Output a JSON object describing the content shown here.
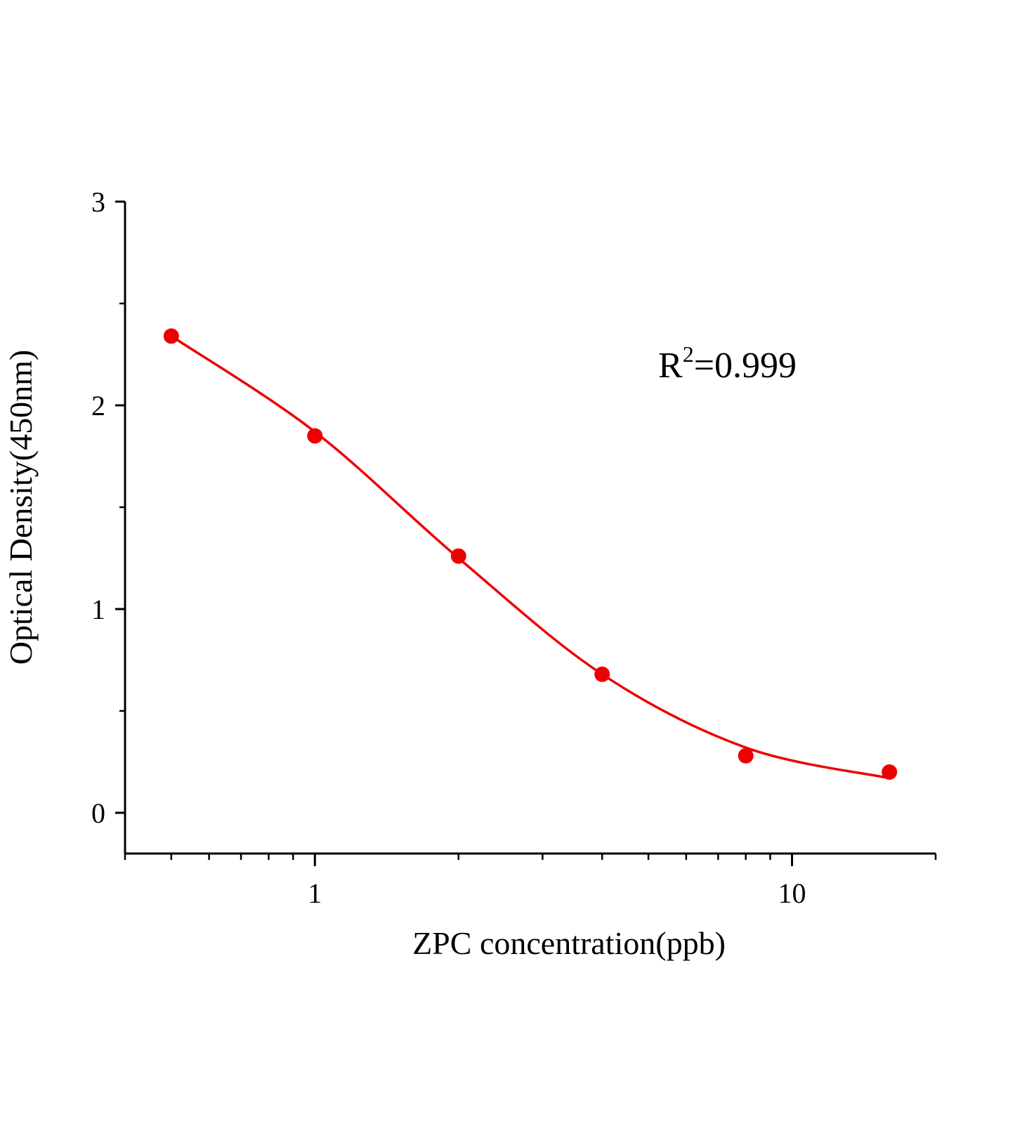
{
  "chart_data": {
    "type": "scatter",
    "title": "",
    "xlabel": "ZPC concentration(ppb)",
    "ylabel": "Optical Density(450nm)",
    "xscale": "log",
    "xlim": [
      0.4,
      20
    ],
    "ylim": [
      -0.2,
      3
    ],
    "xticks": [
      {
        "value": 1,
        "label": "1"
      },
      {
        "value": 10,
        "label": "10"
      }
    ],
    "xminor": [
      0.4,
      0.5,
      0.6,
      0.7,
      0.8,
      0.9,
      2,
      3,
      4,
      5,
      6,
      7,
      8,
      9,
      20
    ],
    "yticks": [
      {
        "value": 0,
        "label": "0"
      },
      {
        "value": 1,
        "label": "1"
      },
      {
        "value": 2,
        "label": "2"
      },
      {
        "value": 3,
        "label": "3"
      }
    ],
    "yminor": [
      0.5,
      1.5,
      2.5
    ],
    "grid": false,
    "series": [
      {
        "x": [
          0.5,
          1,
          2,
          4,
          8,
          16
        ],
        "y": [
          2.34,
          1.85,
          1.26,
          0.68,
          0.28,
          0.2
        ],
        "color": "#ee0000",
        "marker": "circle"
      }
    ],
    "fit_curve": {
      "x": [
        0.5,
        1,
        2,
        4,
        8,
        16
      ],
      "y": [
        2.34,
        1.87,
        1.25,
        0.68,
        0.32,
        0.17
      ],
      "color": "#ee0000"
    },
    "annotation": {
      "base": "R",
      "sup": "2",
      "rest": "=0.999"
    }
  }
}
